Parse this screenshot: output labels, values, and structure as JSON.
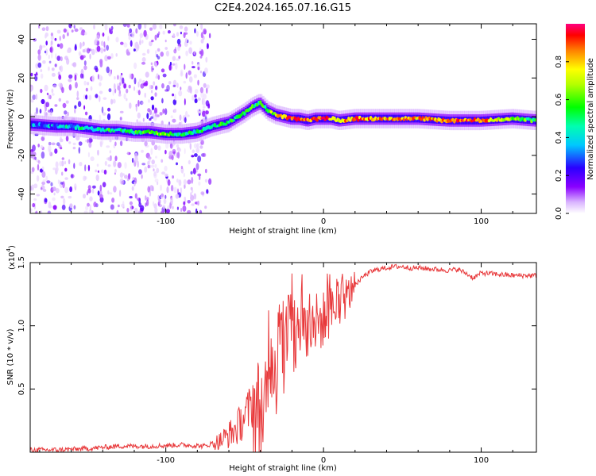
{
  "figure_title": "C2E4.2024.165.07.16.G15",
  "chart_data": [
    {
      "type": "heatmap",
      "title": "C2E4.2024.165.07.16.G15",
      "xlabel": "Height of straight line (km)",
      "ylabel": "Frequency (Hz)",
      "xlim": [
        -186,
        135
      ],
      "ylim": [
        -50,
        48
      ],
      "x_ticks": [
        -100,
        0,
        100
      ],
      "y_ticks": [
        -40,
        -20,
        0,
        20,
        40
      ],
      "x_tick_labels": [
        "-100",
        "0",
        "100"
      ],
      "y_tick_labels": [
        "-40",
        "-20",
        "0",
        "20",
        "40"
      ],
      "grid": false,
      "colorbar": {
        "label": "Normalized spectral amplitude",
        "range": [
          0,
          1
        ],
        "ticks": [
          0.0,
          0.2,
          0.4,
          0.6,
          0.8
        ],
        "tick_labels": [
          "0.0",
          "0.2",
          "0.4",
          "0.6",
          "0.8"
        ],
        "colormap": "rainbow (white-violet-blue-cyan-green-yellow-red)"
      },
      "ridge": {
        "x": [
          -186,
          -170,
          -160,
          -150,
          -140,
          -130,
          -120,
          -110,
          -100,
          -90,
          -80,
          -70,
          -60,
          -50,
          -45,
          -40,
          -35,
          -30,
          -25,
          -20,
          -15,
          -10,
          -5,
          0,
          5,
          10,
          20,
          40,
          60,
          80,
          100,
          120,
          135
        ],
        "freq": [
          -4,
          -5,
          -5,
          -6,
          -7,
          -7,
          -8,
          -8,
          -9,
          -9,
          -8,
          -5,
          -3,
          2,
          5,
          7,
          3,
          1,
          0,
          -1,
          -1,
          -2,
          -1,
          -1,
          -1,
          -2,
          -1,
          -1,
          -1,
          -2,
          -2,
          -1,
          -2
        ],
        "peak_amplitude": [
          0.3,
          0.35,
          0.4,
          0.45,
          0.5,
          0.5,
          0.5,
          0.55,
          0.6,
          0.5,
          0.45,
          0.5,
          0.5,
          0.55,
          0.6,
          0.5,
          0.6,
          0.7,
          0.85,
          0.95,
          0.95,
          0.9,
          0.9,
          0.95,
          0.85,
          0.8,
          0.85,
          0.8,
          0.8,
          0.85,
          0.9,
          0.6,
          0.55
        ]
      },
      "noise_region_x": [
        -186,
        -72
      ]
    },
    {
      "type": "line",
      "xlabel": "Height of straight line (km)",
      "ylabel": "SNR (10 * v/v)",
      "y_multiplier_label": "(x10",
      "y_multiplier_exponent": "4",
      "y_multiplier_close": ")",
      "xlim": [
        -186,
        135
      ],
      "ylim": [
        0,
        1.5
      ],
      "x_ticks": [
        -100,
        0,
        100
      ],
      "y_ticks": [
        0.5,
        1.0,
        1.5
      ],
      "x_tick_labels": [
        "-100",
        "0",
        "100"
      ],
      "y_tick_labels": [
        "0.5",
        "1.0",
        "1.5"
      ],
      "grid": false,
      "series": [
        {
          "color": "#e8393b",
          "x": [
            -186,
            -170,
            -150,
            -130,
            -110,
            -90,
            -75,
            -65,
            -55,
            -45,
            -38,
            -34,
            -31,
            -28,
            -25,
            -22,
            -18,
            -14,
            -10,
            -6,
            -2,
            2,
            6,
            10,
            14,
            18,
            22,
            26,
            30,
            35,
            40,
            45,
            50,
            55,
            60,
            70,
            80,
            85,
            90,
            95,
            100,
            110,
            120,
            135
          ],
          "y": [
            0.02,
            0.02,
            0.03,
            0.05,
            0.05,
            0.06,
            0.05,
            0.1,
            0.2,
            0.4,
            0.35,
            0.9,
            0.5,
            1.05,
            0.75,
            1.1,
            0.9,
            1.1,
            0.95,
            1.05,
            1.05,
            1.1,
            1.15,
            1.2,
            1.22,
            1.3,
            1.35,
            1.4,
            1.43,
            1.45,
            1.46,
            1.47,
            1.47,
            1.46,
            1.46,
            1.45,
            1.44,
            1.45,
            1.42,
            1.38,
            1.42,
            1.41,
            1.4,
            1.4
          ]
        }
      ]
    }
  ]
}
